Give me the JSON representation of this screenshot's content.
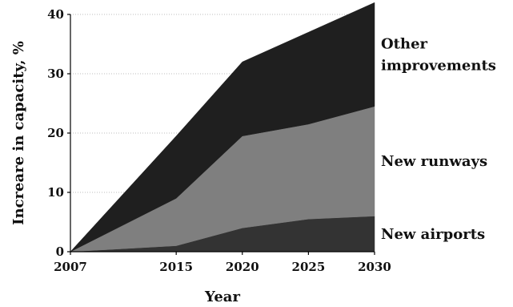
{
  "chart_data": {
    "type": "area",
    "stacked": true,
    "x": [
      2007,
      2015,
      2020,
      2025,
      2030
    ],
    "series": [
      {
        "name": "New airports",
        "values": [
          0,
          1,
          4,
          5.5,
          6
        ],
        "color": "#333333"
      },
      {
        "name": "New runways",
        "values": [
          0,
          8,
          15.5,
          16,
          18.5
        ],
        "color": "#7f7f7f"
      },
      {
        "name": "Other improvements",
        "values": [
          0,
          10.5,
          12.5,
          15.5,
          17.5
        ],
        "color": "#1f1f1f"
      }
    ],
    "series_labels": [
      {
        "lines": [
          "New airports"
        ]
      },
      {
        "lines": [
          "New runways"
        ]
      },
      {
        "lines": [
          "Other",
          "improvements"
        ]
      }
    ],
    "xlabel": "Year",
    "ylabel": "Increare in capacity, %",
    "ylim": [
      0,
      40
    ],
    "yticks": [
      0,
      10,
      20,
      30,
      40
    ],
    "xticks": [
      "2007",
      "2015",
      "2020",
      "2025",
      "2030"
    ],
    "grid": true,
    "legend": "right, labels beside areas"
  }
}
